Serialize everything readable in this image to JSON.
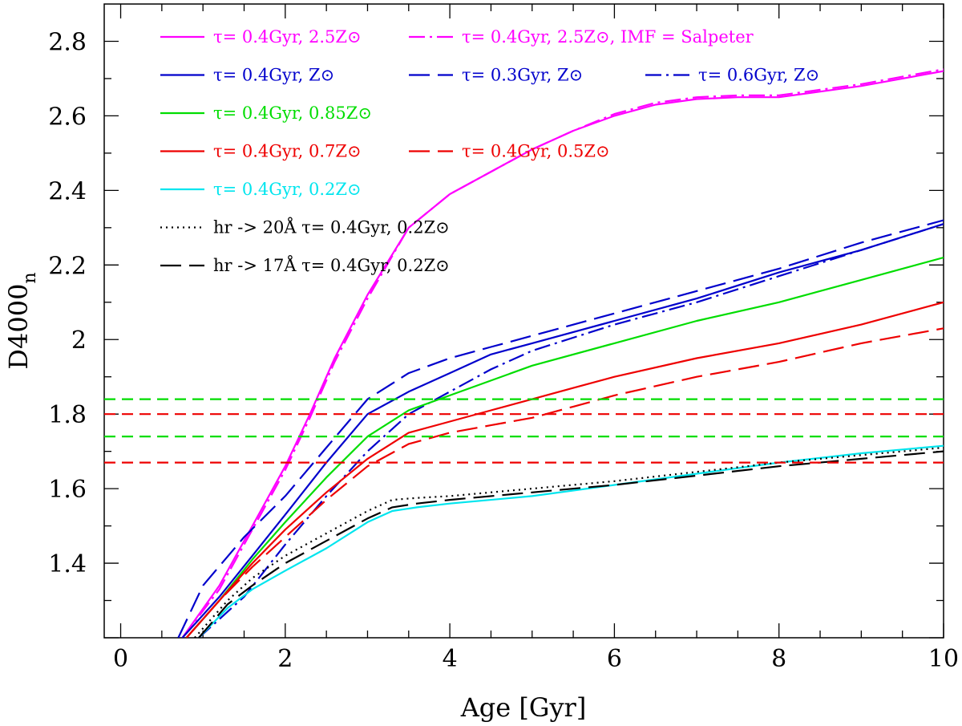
{
  "chart_data": {
    "type": "line",
    "xlabel": "Age [Gyr]",
    "ylabel": "D4000",
    "ylabel_subscript": "n",
    "xlim": [
      -0.2,
      10
    ],
    "ylim": [
      1.2,
      2.9
    ],
    "x_ticks": [
      0,
      2,
      4,
      6,
      8,
      10
    ],
    "x_tick_labels": [
      "0",
      "2",
      "4",
      "6",
      "8",
      "10"
    ],
    "y_ticks": [
      1.4,
      1.6,
      1.8,
      2.0,
      2.2,
      2.4,
      2.6,
      2.8
    ],
    "y_tick_labels": [
      "1.4",
      "1.6",
      "1.8",
      "2",
      "2.2",
      "2.4",
      "2.6",
      "2.8"
    ],
    "grid": false,
    "legend_position": "top-left",
    "series": [
      {
        "name": "τ= 0.4Gyr, 2.5Z⊙",
        "color": "#ff00ff",
        "dash": "solid",
        "points": [
          [
            0.75,
            1.2
          ],
          [
            1.2,
            1.34
          ],
          [
            1.6,
            1.5
          ],
          [
            2.0,
            1.66
          ],
          [
            2.3,
            1.8
          ],
          [
            2.6,
            1.95
          ],
          [
            3.0,
            2.12
          ],
          [
            3.5,
            2.3
          ],
          [
            4.0,
            2.39
          ],
          [
            4.5,
            2.45
          ],
          [
            5.0,
            2.51
          ],
          [
            5.5,
            2.56
          ],
          [
            6.0,
            2.6
          ],
          [
            6.5,
            2.63
          ],
          [
            7.0,
            2.645
          ],
          [
            7.5,
            2.65
          ],
          [
            8.0,
            2.65
          ],
          [
            8.5,
            2.665
          ],
          [
            9.0,
            2.68
          ],
          [
            9.5,
            2.7
          ],
          [
            10.0,
            2.72
          ]
        ]
      },
      {
        "name": "τ= 0.4Gyr, 2.5Z⊙, IMF = Salpeter",
        "color": "#ff00ff",
        "dash": "dashdot",
        "points": [
          [
            0.75,
            1.2
          ],
          [
            1.2,
            1.33
          ],
          [
            1.6,
            1.49
          ],
          [
            2.0,
            1.65
          ],
          [
            2.3,
            1.79
          ],
          [
            2.6,
            1.94
          ],
          [
            3.0,
            2.11
          ],
          [
            3.5,
            2.3
          ],
          [
            4.0,
            2.39
          ],
          [
            4.5,
            2.45
          ],
          [
            5.0,
            2.51
          ],
          [
            5.5,
            2.56
          ],
          [
            6.0,
            2.605
          ],
          [
            6.5,
            2.635
          ],
          [
            7.0,
            2.65
          ],
          [
            7.5,
            2.655
          ],
          [
            8.0,
            2.655
          ],
          [
            8.5,
            2.67
          ],
          [
            9.0,
            2.685
          ],
          [
            9.5,
            2.705
          ],
          [
            10.0,
            2.725
          ]
        ]
      },
      {
        "name": "τ= 0.4Gyr, Z⊙",
        "color": "#0000cc",
        "dash": "solid",
        "points": [
          [
            0.75,
            1.2
          ],
          [
            1.2,
            1.31
          ],
          [
            1.6,
            1.42
          ],
          [
            2.0,
            1.53
          ],
          [
            2.5,
            1.67
          ],
          [
            3.0,
            1.8
          ],
          [
            3.5,
            1.86
          ],
          [
            4.0,
            1.91
          ],
          [
            4.5,
            1.96
          ],
          [
            5.0,
            1.99
          ],
          [
            6.0,
            2.05
          ],
          [
            7.0,
            2.11
          ],
          [
            8.0,
            2.18
          ],
          [
            9.0,
            2.24
          ],
          [
            10.0,
            2.31
          ]
        ]
      },
      {
        "name": "τ= 0.3Gyr, Z⊙",
        "color": "#0000cc",
        "dash": "longdash",
        "points": [
          [
            0.7,
            1.2
          ],
          [
            1.0,
            1.34
          ],
          [
            1.5,
            1.47
          ],
          [
            2.0,
            1.58
          ],
          [
            2.5,
            1.71
          ],
          [
            3.0,
            1.84
          ],
          [
            3.5,
            1.91
          ],
          [
            4.0,
            1.95
          ],
          [
            4.5,
            1.98
          ],
          [
            5.0,
            2.01
          ],
          [
            6.0,
            2.07
          ],
          [
            7.0,
            2.13
          ],
          [
            8.0,
            2.19
          ],
          [
            9.0,
            2.26
          ],
          [
            10.0,
            2.32
          ]
        ]
      },
      {
        "name": "τ= 0.6Gyr, Z⊙",
        "color": "#0000cc",
        "dash": "dashdot",
        "points": [
          [
            0.95,
            1.2
          ],
          [
            1.5,
            1.31
          ],
          [
            2.0,
            1.45
          ],
          [
            2.5,
            1.58
          ],
          [
            3.0,
            1.7
          ],
          [
            3.5,
            1.8
          ],
          [
            4.0,
            1.86
          ],
          [
            4.5,
            1.92
          ],
          [
            5.0,
            1.97
          ],
          [
            6.0,
            2.04
          ],
          [
            7.0,
            2.1
          ],
          [
            8.0,
            2.17
          ],
          [
            9.0,
            2.24
          ],
          [
            10.0,
            2.31
          ]
        ]
      },
      {
        "name": "τ= 0.4Gyr, 0.85Z⊙",
        "color": "#00dd00",
        "dash": "solid",
        "points": [
          [
            0.8,
            1.2
          ],
          [
            1.2,
            1.3
          ],
          [
            1.6,
            1.41
          ],
          [
            2.0,
            1.51
          ],
          [
            2.5,
            1.63
          ],
          [
            3.0,
            1.74
          ],
          [
            3.5,
            1.81
          ],
          [
            4.0,
            1.85
          ],
          [
            4.5,
            1.89
          ],
          [
            5.0,
            1.93
          ],
          [
            6.0,
            1.99
          ],
          [
            7.0,
            2.05
          ],
          [
            8.0,
            2.1
          ],
          [
            9.0,
            2.16
          ],
          [
            10.0,
            2.22
          ]
        ]
      },
      {
        "name": "τ= 0.4Gyr, 0.7Z⊙",
        "color": "#ee0000",
        "dash": "solid",
        "points": [
          [
            0.8,
            1.2
          ],
          [
            1.2,
            1.3
          ],
          [
            1.6,
            1.4
          ],
          [
            2.0,
            1.49
          ],
          [
            2.5,
            1.59
          ],
          [
            3.0,
            1.68
          ],
          [
            3.5,
            1.75
          ],
          [
            4.0,
            1.78
          ],
          [
            4.5,
            1.81
          ],
          [
            5.0,
            1.84
          ],
          [
            5.5,
            1.87
          ],
          [
            6.0,
            1.9
          ],
          [
            7.0,
            1.95
          ],
          [
            8.0,
            1.99
          ],
          [
            9.0,
            2.04
          ],
          [
            10.0,
            2.1
          ]
        ]
      },
      {
        "name": "τ= 0.4Gyr, 0.5Z⊙",
        "color": "#ee0000",
        "dash": "longdash",
        "points": [
          [
            0.8,
            1.2
          ],
          [
            1.2,
            1.3
          ],
          [
            1.6,
            1.39
          ],
          [
            2.0,
            1.47
          ],
          [
            2.5,
            1.57
          ],
          [
            3.0,
            1.66
          ],
          [
            3.5,
            1.72
          ],
          [
            4.0,
            1.75
          ],
          [
            4.5,
            1.77
          ],
          [
            5.0,
            1.79
          ],
          [
            5.5,
            1.82
          ],
          [
            6.0,
            1.85
          ],
          [
            7.0,
            1.9
          ],
          [
            8.0,
            1.94
          ],
          [
            9.0,
            1.99
          ],
          [
            10.0,
            2.03
          ]
        ]
      },
      {
        "name": "τ= 0.4Gyr, 0.2Z⊙",
        "color": "#00e5ee",
        "dash": "solid",
        "points": [
          [
            0.95,
            1.2
          ],
          [
            1.3,
            1.28
          ],
          [
            1.6,
            1.33
          ],
          [
            2.0,
            1.38
          ],
          [
            2.5,
            1.44
          ],
          [
            3.0,
            1.51
          ],
          [
            3.3,
            1.54
          ],
          [
            3.6,
            1.55
          ],
          [
            4.0,
            1.56
          ],
          [
            5.0,
            1.58
          ],
          [
            6.0,
            1.61
          ],
          [
            7.0,
            1.64
          ],
          [
            8.0,
            1.67
          ],
          [
            9.0,
            1.695
          ],
          [
            10.0,
            1.715
          ]
        ]
      },
      {
        "name": "hr -> 20Å τ= 0.4Gyr, 0.2Z⊙",
        "color": "#000000",
        "dash": "dotted",
        "points": [
          [
            0.9,
            1.2
          ],
          [
            1.3,
            1.3
          ],
          [
            1.6,
            1.36
          ],
          [
            2.0,
            1.42
          ],
          [
            2.5,
            1.48
          ],
          [
            3.0,
            1.54
          ],
          [
            3.3,
            1.57
          ],
          [
            3.6,
            1.575
          ],
          [
            4.0,
            1.58
          ],
          [
            5.0,
            1.6
          ],
          [
            6.0,
            1.62
          ],
          [
            7.0,
            1.645
          ],
          [
            8.0,
            1.67
          ],
          [
            9.0,
            1.69
          ],
          [
            10.0,
            1.71
          ]
        ]
      },
      {
        "name": "hr -> 17Å τ= 0.4Gyr, 0.2Z⊙",
        "color": "#000000",
        "dash": "longdash",
        "points": [
          [
            0.95,
            1.2
          ],
          [
            1.3,
            1.29
          ],
          [
            1.6,
            1.34
          ],
          [
            2.0,
            1.4
          ],
          [
            2.5,
            1.46
          ],
          [
            3.0,
            1.52
          ],
          [
            3.3,
            1.55
          ],
          [
            3.6,
            1.56
          ],
          [
            4.0,
            1.57
          ],
          [
            5.0,
            1.59
          ],
          [
            6.0,
            1.61
          ],
          [
            7.0,
            1.635
          ],
          [
            8.0,
            1.66
          ],
          [
            9.0,
            1.68
          ],
          [
            10.0,
            1.7
          ]
        ]
      },
      {
        "name": "",
        "color": "#00dd00",
        "dash": "dashed",
        "points": [
          [
            -0.2,
            1.84
          ],
          [
            10.0,
            1.84
          ]
        ]
      },
      {
        "name": "",
        "color": "#ee0000",
        "dash": "dashed",
        "points": [
          [
            -0.2,
            1.8
          ],
          [
            10.0,
            1.8
          ]
        ]
      },
      {
        "name": "",
        "color": "#00dd00",
        "dash": "dashed",
        "points": [
          [
            -0.2,
            1.74
          ],
          [
            10.0,
            1.74
          ]
        ]
      },
      {
        "name": "",
        "color": "#ee0000",
        "dash": "dashed",
        "points": [
          [
            -0.2,
            1.67
          ],
          [
            10.0,
            1.67
          ]
        ]
      }
    ],
    "legend": [
      [
        {
          "label": "τ= 0.4Gyr, 2.5Z⊙",
          "color": "#ff00ff",
          "dash": "solid"
        },
        {
          "label": "τ= 0.4Gyr, 2.5Z⊙, IMF = Salpeter",
          "color": "#ff00ff",
          "dash": "dashdot"
        }
      ],
      [
        {
          "label": "τ= 0.4Gyr, Z⊙",
          "color": "#0000cc",
          "dash": "solid"
        },
        {
          "label": "τ= 0.3Gyr, Z⊙",
          "color": "#0000cc",
          "dash": "longdash"
        },
        {
          "label": "τ= 0.6Gyr, Z⊙",
          "color": "#0000cc",
          "dash": "dashdot"
        }
      ],
      [
        {
          "label": "τ= 0.4Gyr, 0.85Z⊙",
          "color": "#00dd00",
          "dash": "solid"
        }
      ],
      [
        {
          "label": "τ= 0.4Gyr, 0.7Z⊙",
          "color": "#ee0000",
          "dash": "solid"
        },
        {
          "label": "τ= 0.4Gyr, 0.5Z⊙",
          "color": "#ee0000",
          "dash": "longdash"
        }
      ],
      [
        {
          "label": "τ= 0.4Gyr, 0.2Z⊙",
          "color": "#00e5ee",
          "dash": "solid"
        }
      ],
      [
        {
          "label": "hr -> 20Å  τ= 0.4Gyr, 0.2Z⊙",
          "color": "#000000",
          "dash": "dotted"
        }
      ],
      [
        {
          "label": "hr -> 17Å  τ= 0.4Gyr, 0.2Z⊙",
          "color": "#000000",
          "dash": "longdash"
        }
      ]
    ]
  }
}
